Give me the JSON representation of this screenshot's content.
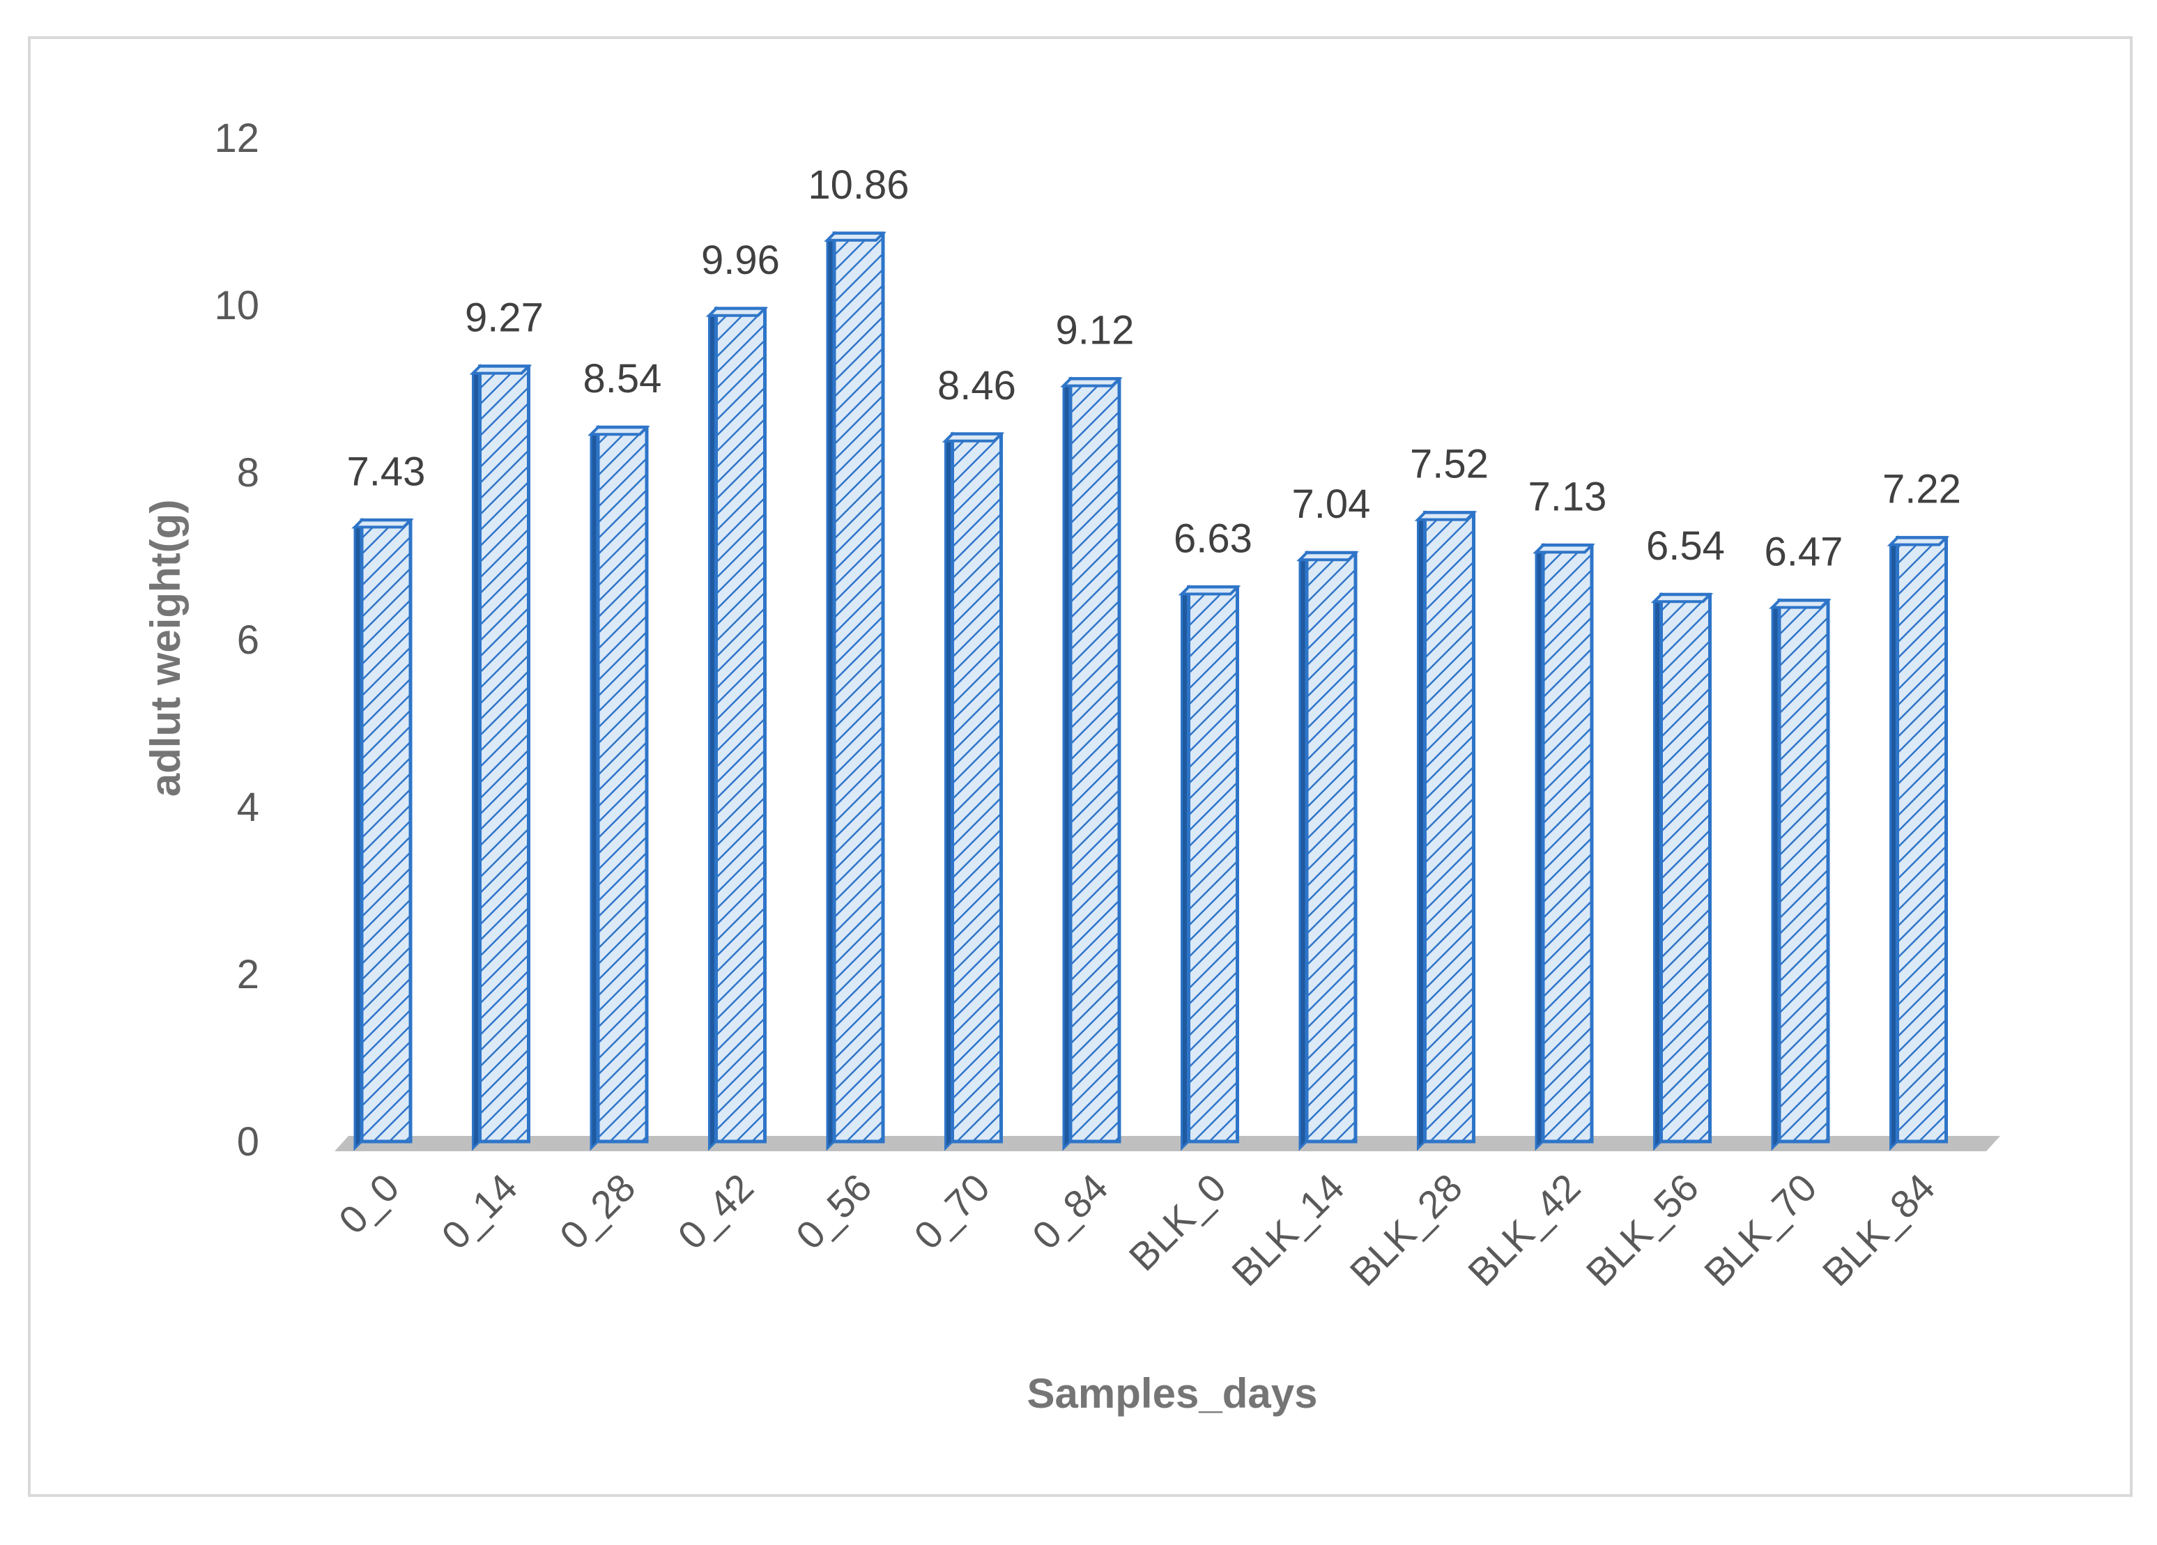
{
  "chart_data": {
    "type": "bar",
    "title": "",
    "xlabel": "Samples_days",
    "ylabel": "adlut weight(g)",
    "ylim": [
      0,
      12
    ],
    "yticks": [
      0,
      2,
      4,
      6,
      8,
      10,
      12
    ],
    "grid": false,
    "legend": "none",
    "categories": [
      "0_0",
      "0_14",
      "0_28",
      "0_42",
      "0_56",
      "0_70",
      "0_84",
      "BLK_0",
      "BLK_14",
      "BLK_28",
      "BLK_42",
      "BLK_56",
      "BLK_70",
      "BLK_84"
    ],
    "values": [
      7.43,
      9.27,
      8.54,
      9.96,
      10.86,
      8.46,
      9.12,
      6.63,
      7.04,
      7.52,
      7.13,
      6.54,
      6.47,
      7.22
    ],
    "data_labels": [
      "7.43",
      "9.27",
      "8.54",
      "9.96",
      "10.86",
      "8.46",
      "9.12",
      "6.63",
      "7.04",
      "7.52",
      "7.13",
      "6.54",
      "6.47",
      "7.22"
    ],
    "colors": {
      "bar_edge": "#2e75c8",
      "bar_fill": "#dce9f7",
      "hatch": "#2e75c8",
      "floor": "#bfbfbf",
      "frame": "#d9d9d9"
    }
  }
}
